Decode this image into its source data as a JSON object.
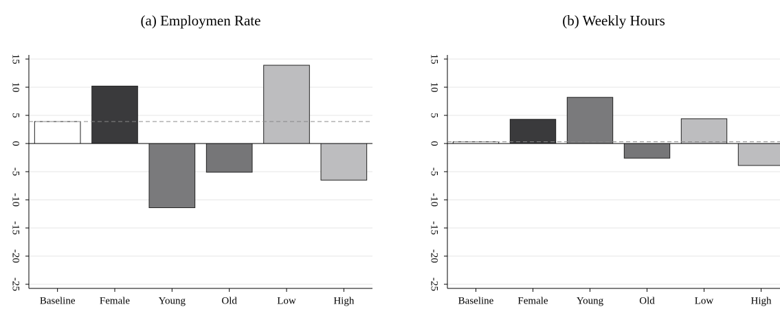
{
  "chart_data": [
    {
      "type": "bar",
      "title": "(a) Employmen Rate",
      "categories": [
        "Baseline",
        "Female",
        "Young",
        "Old",
        "Low",
        "High"
      ],
      "values": [
        3.9,
        10.2,
        -11.4,
        -5.1,
        13.9,
        -6.5
      ],
      "colors": [
        "#ffffff",
        "#3a3a3c",
        "#7a7a7c",
        "#767678",
        "#bdbdbf",
        "#bdbdbf"
      ],
      "ylim": [
        -25,
        15
      ],
      "yticks": [
        -25,
        -20,
        -15,
        -10,
        -5,
        0,
        5,
        10,
        15
      ],
      "grid": true,
      "reference_line": true
    },
    {
      "type": "bar",
      "title": "(b) Weekly Hours",
      "categories": [
        "Baseline",
        "Female",
        "Young",
        "Old",
        "Low",
        "High"
      ],
      "values": [
        0.3,
        4.3,
        8.2,
        -2.6,
        4.4,
        -3.9
      ],
      "colors": [
        "#ffffff",
        "#3a3a3c",
        "#7a7a7c",
        "#767678",
        "#bdbdbf",
        "#bdbdbf"
      ],
      "ylim": [
        -25,
        15
      ],
      "yticks": [
        -25,
        -20,
        -15,
        -10,
        -5,
        0,
        5,
        10,
        15
      ],
      "grid": true,
      "reference_line": true
    }
  ]
}
